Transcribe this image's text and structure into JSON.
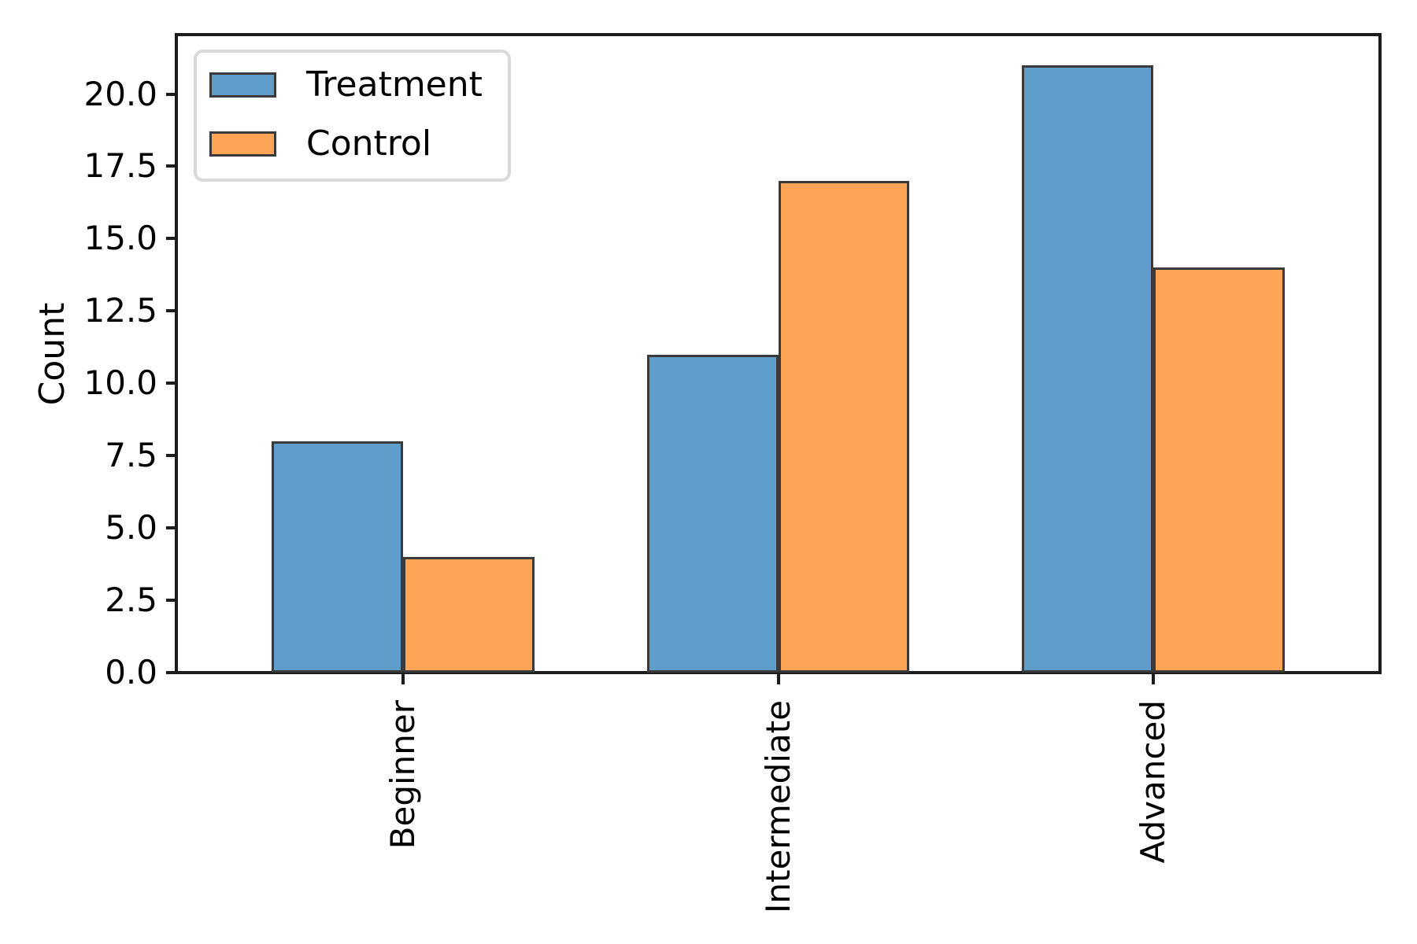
{
  "chart_data": {
    "type": "bar",
    "title": "",
    "categories": [
      "Beginner",
      "Intermediate",
      "Advanced"
    ],
    "series": [
      {
        "name": "Treatment",
        "color": "#5F9DCB",
        "values": [
          8,
          11,
          21
        ]
      },
      {
        "name": "Control",
        "color": "#FEA456",
        "values": [
          4,
          17,
          14
        ]
      }
    ],
    "xlabel": "",
    "ylabel": "Count",
    "ytick_labels": [
      "0.0",
      "2.5",
      "5.0",
      "7.5",
      "10.0",
      "12.5",
      "15.0",
      "17.5",
      "20.0"
    ],
    "ytick_values": [
      0,
      2.5,
      5,
      7.5,
      10,
      12.5,
      15,
      17.5,
      20
    ],
    "ylim": [
      0,
      22
    ],
    "xlim": [
      -0.6,
      2.6
    ],
    "bar_width": 0.35,
    "bar_edge_color": "#3a3a3a",
    "spine_color": "#1c1c1c",
    "legend_position": "upper left",
    "grid": false,
    "xtick_rotation": 90
  }
}
